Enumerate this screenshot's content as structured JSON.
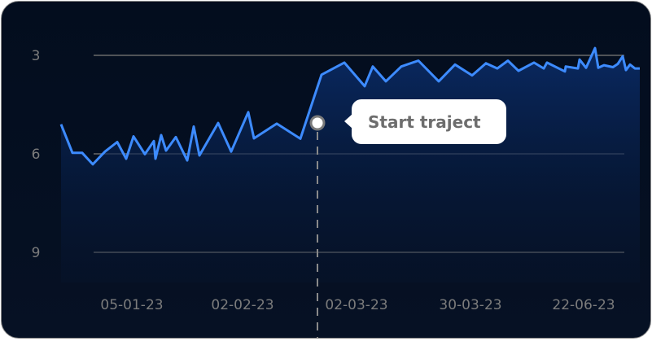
{
  "chart_data": {
    "type": "line",
    "y_axis": {
      "ticks": [
        3,
        6,
        9
      ],
      "inverted": true,
      "range": [
        2.5,
        9.5
      ]
    },
    "x_axis": {
      "tick_labels": [
        "05-01-23",
        "02-02-23",
        "02-03-23",
        "30-03-23",
        "22-06-23"
      ]
    },
    "grid": "horizontal",
    "series": [
      {
        "values": [
          5.1,
          5.97,
          5.97,
          6.32,
          5.93,
          5.64,
          6.15,
          5.47,
          6.01,
          5.61,
          6.15,
          5.43,
          5.9,
          5.49,
          6.2,
          5.17,
          6.05,
          5.06,
          5.93,
          4.73,
          5.53,
          5.08,
          5.54,
          3.59,
          3.22,
          3.94,
          3.34,
          3.79,
          3.34,
          3.16,
          3.79,
          3.28,
          3.61,
          3.24,
          3.4,
          3.16,
          3.47,
          3.22,
          3.4,
          3.22,
          3.49,
          3.34,
          3.4,
          3.13,
          3.38,
          2.78,
          3.38,
          3.3,
          3.36,
          3.26,
          3.03,
          3.45,
          3.28,
          3.4,
          3.4
        ]
      }
    ],
    "annotation": {
      "label": "Start traject",
      "value": 5.06
    }
  },
  "colors": {
    "line": "#3d8bff",
    "background": "#040e20",
    "grid": "#6a6a6a",
    "tooltip_bg": "#ffffff"
  }
}
